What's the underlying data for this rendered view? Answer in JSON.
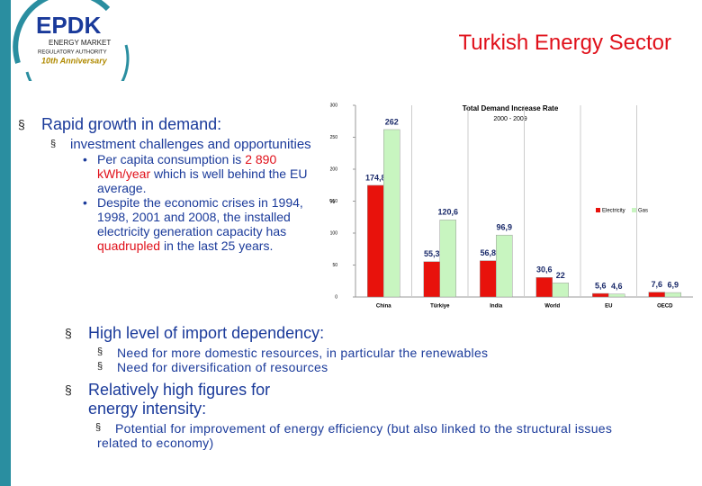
{
  "header": {
    "logo": {
      "brand": "EPDK",
      "line1": "ENERGY MARKET",
      "line2": "REGULATORY AUTHORITY",
      "anniversary": "10th Anniversary"
    },
    "title": "Turkish Energy Sector"
  },
  "bullets": [
    {
      "text": "Rapid growth in demand:",
      "items": [
        {
          "text": "investment challenges and opportunities",
          "items": [
            [
              "Per capita consumption is ",
              "2 890 kWh/year",
              " which is well behind the EU average."
            ],
            [
              "Despite the economic crises in 1994, 1998, 2001 and 2008, the installed electricity generation capacity has ",
              "quadrupled",
              " in the last 25 years."
            ]
          ]
        }
      ]
    },
    {
      "text": "High level of import dependency:",
      "items": [
        "Need for more domestic resources, in particular the renewables",
        "Need for diversification of resources"
      ]
    },
    {
      "text": "Relatively high figures for energy intensity:",
      "items": [
        "Potential for improvement of energy efficiency (but also linked to the structural issues related to economy)"
      ]
    }
  ],
  "chart_data": {
    "type": "bar",
    "title": "Total Demand Increase Rate",
    "subtitle": "2000 - 2009",
    "y_label": "%",
    "categories": [
      "China",
      "Türkiye",
      "India",
      "World",
      "EU",
      "OECD"
    ],
    "series": [
      {
        "name": "Electricity",
        "color": "#e8120c",
        "values": [
          174.8,
          55.3,
          56.8,
          30.6,
          5.6,
          7.6
        ],
        "value_labels": [
          "174,8",
          "55,3",
          "56,8",
          "30,6",
          "5,6",
          "7,6"
        ]
      },
      {
        "name": "Gas",
        "color": "#c8f5c0",
        "values": [
          262,
          120.6,
          96.9,
          22,
          4.6,
          6.9
        ],
        "value_labels": [
          "262",
          "120,6",
          "96,9",
          "22",
          "4,6",
          "6,9"
        ]
      }
    ],
    "ylim": [
      0,
      300
    ],
    "yticks": [
      0,
      50,
      100,
      150,
      200,
      250,
      300
    ],
    "grid": false,
    "legend": "right"
  }
}
